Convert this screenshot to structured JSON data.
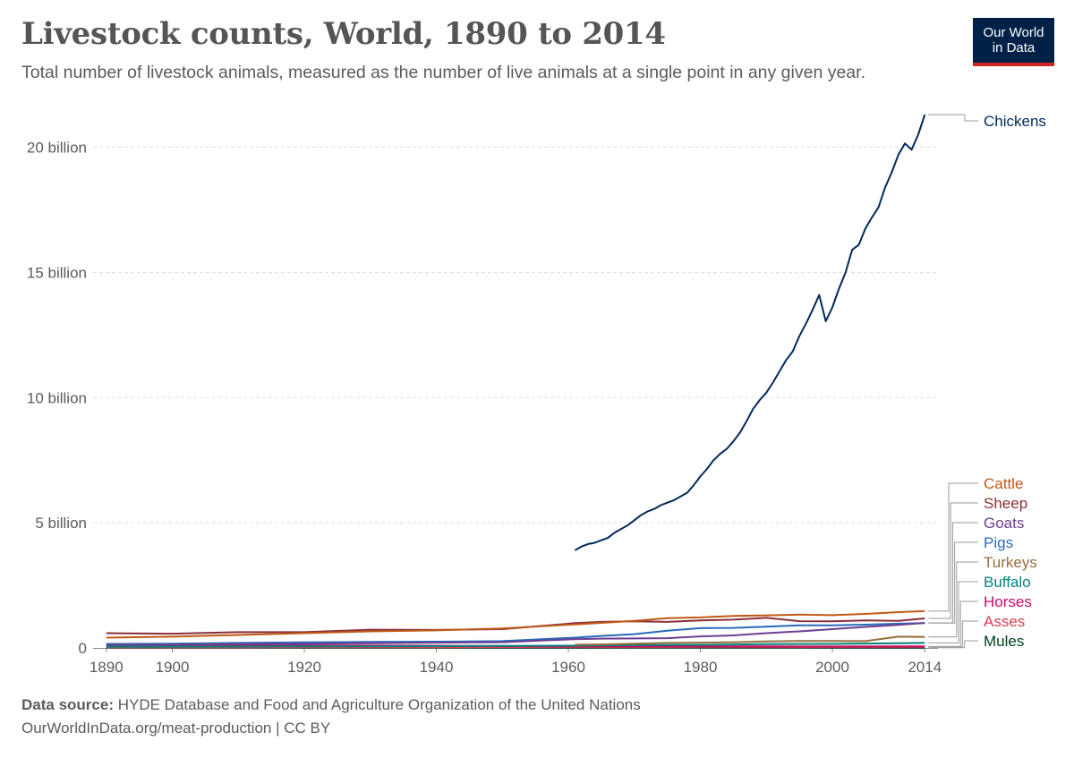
{
  "header": {
    "title": "Livestock counts, World, 1890 to 2014",
    "subtitle": "Total number of livestock animals, measured as the number of live animals at a single point in any given year.",
    "logo_line1": "Our World",
    "logo_line2": "in Data"
  },
  "footer": {
    "source_label": "Data source:",
    "source_text": "HYDE Database and Food and Agriculture Organization of the United Nations",
    "url": "OurWorldInData.org/meat-production",
    "separator": "|",
    "license": "CC BY"
  },
  "colors": {
    "grid": "#dddddd",
    "axis": "#888888",
    "label": "#5b5b5b",
    "connector": "#999999"
  },
  "chart_data": {
    "type": "line",
    "title": "Livestock counts, World, 1890 to 2014",
    "xlabel": "",
    "ylabel": "",
    "xlim": [
      1888,
      2016
    ],
    "ylim": [
      0,
      21500000000
    ],
    "grid": true,
    "legend": "right",
    "x_ticks": [
      {
        "value": 1890,
        "label": "1890"
      },
      {
        "value": 1900,
        "label": "1900"
      },
      {
        "value": 1920,
        "label": "1920"
      },
      {
        "value": 1940,
        "label": "1940"
      },
      {
        "value": 1960,
        "label": "1960"
      },
      {
        "value": 1980,
        "label": "1980"
      },
      {
        "value": 2000,
        "label": "2000"
      },
      {
        "value": 2014,
        "label": "2014"
      }
    ],
    "y_ticks": [
      {
        "value": 0,
        "label": "0"
      },
      {
        "value": 5000000000,
        "label": "5 billion"
      },
      {
        "value": 10000000000,
        "label": "10 billion"
      },
      {
        "value": 15000000000,
        "label": "15 billion"
      },
      {
        "value": 20000000000,
        "label": "20 billion"
      }
    ],
    "series": [
      {
        "name": "Chickens",
        "color": "#00295b",
        "x": [
          1961,
          1962,
          1963,
          1964,
          1965,
          1966,
          1967,
          1968,
          1969,
          1970,
          1971,
          1972,
          1973,
          1974,
          1975,
          1976,
          1977,
          1978,
          1979,
          1980,
          1981,
          1982,
          1983,
          1984,
          1985,
          1986,
          1987,
          1988,
          1989,
          1990,
          1991,
          1992,
          1993,
          1994,
          1995,
          1996,
          1997,
          1998,
          1999,
          2000,
          2001,
          2002,
          2003,
          2004,
          2005,
          2006,
          2007,
          2008,
          2009,
          2010,
          2011,
          2012,
          2013,
          2014
        ],
        "y": [
          3900000000.0,
          4050000000.0,
          4150000000.0,
          4200000000.0,
          4300000000.0,
          4400000000.0,
          4600000000.0,
          4750000000.0,
          4900000000.0,
          5100000000.0,
          5300000000.0,
          5450000000.0,
          5550000000.0,
          5700000000.0,
          5800000000.0,
          5900000000.0,
          6050000000.0,
          6200000000.0,
          6500000000.0,
          6850000000.0,
          7150000000.0,
          7500000000.0,
          7750000000.0,
          7950000000.0,
          8250000000.0,
          8600000000.0,
          9050000000.0,
          9550000000.0,
          9900000000.0,
          10200000000.0,
          10600000000.0,
          11050000000.0,
          11500000000.0,
          11850000000.0,
          12450000000.0,
          12950000000.0,
          13500000000.0,
          14100000000.0,
          13050000000.0,
          13600000000.0,
          14350000000.0,
          15000000000.0,
          15900000000.0,
          16100000000.0,
          16750000000.0,
          17200000000.0,
          17600000000.0,
          18400000000.0,
          19000000000.0,
          19700000000.0,
          20150000000.0,
          19900000000.0,
          20500000000.0,
          21300000000.0
        ]
      },
      {
        "name": "Cattle",
        "color": "#c05917",
        "x": [
          1890,
          1900,
          1910,
          1920,
          1930,
          1940,
          1950,
          1961,
          1965,
          1970,
          1975,
          1980,
          1985,
          1990,
          1995,
          2000,
          2005,
          2010,
          2014
        ],
        "y": [
          410000000.0,
          450000000.0,
          520000000.0,
          590000000.0,
          660000000.0,
          700000000.0,
          780000000.0,
          940000000.0,
          1000000000.0,
          1080000000.0,
          1190000000.0,
          1220000000.0,
          1280000000.0,
          1300000000.0,
          1330000000.0,
          1310000000.0,
          1360000000.0,
          1430000000.0,
          1470000000.0
        ]
      },
      {
        "name": "Sheep",
        "color": "#883039",
        "x": [
          1890,
          1900,
          1910,
          1920,
          1930,
          1940,
          1950,
          1961,
          1965,
          1970,
          1975,
          1980,
          1985,
          1990,
          1995,
          2000,
          2005,
          2010,
          2014
        ],
        "y": [
          590000000.0,
          570000000.0,
          630000000.0,
          630000000.0,
          730000000.0,
          720000000.0,
          750000000.0,
          990000000.0,
          1040000000.0,
          1060000000.0,
          1040000000.0,
          1100000000.0,
          1130000000.0,
          1200000000.0,
          1070000000.0,
          1060000000.0,
          1100000000.0,
          1080000000.0,
          1180000000.0
        ]
      },
      {
        "name": "Goats",
        "color": "#6d3e91",
        "x": [
          1890,
          1900,
          1910,
          1920,
          1930,
          1940,
          1950,
          1961,
          1965,
          1970,
          1975,
          1980,
          1985,
          1990,
          1995,
          2000,
          2005,
          2010,
          2014
        ],
        "y": [
          120000000.0,
          130000000.0,
          150000000.0,
          160000000.0,
          190000000.0,
          210000000.0,
          230000000.0,
          350000000.0,
          370000000.0,
          380000000.0,
          390000000.0,
          460000000.0,
          500000000.0,
          590000000.0,
          660000000.0,
          750000000.0,
          840000000.0,
          920000000.0,
          1000000000.0
        ]
      },
      {
        "name": "Pigs",
        "color": "#286bbb",
        "x": [
          1890,
          1900,
          1910,
          1920,
          1930,
          1940,
          1950,
          1961,
          1965,
          1970,
          1975,
          1980,
          1985,
          1990,
          1995,
          2000,
          2005,
          2010,
          2014
        ],
        "y": [
          160000000.0,
          170000000.0,
          200000000.0,
          220000000.0,
          240000000.0,
          250000000.0,
          270000000.0,
          410000000.0,
          480000000.0,
          550000000.0,
          690000000.0,
          790000000.0,
          800000000.0,
          850000000.0,
          900000000.0,
          900000000.0,
          930000000.0,
          970000000.0,
          990000000.0
        ]
      },
      {
        "name": "Turkeys",
        "color": "#996d39",
        "x": [
          1961,
          1965,
          1970,
          1975,
          1980,
          1985,
          1990,
          1995,
          2000,
          2005,
          2010,
          2014
        ],
        "y": [
          130000000.0,
          140000000.0,
          170000000.0,
          200000000.0,
          210000000.0,
          230000000.0,
          260000000.0,
          280000000.0,
          280000000.0,
          270000000.0,
          450000000.0,
          440000000.0
        ]
      },
      {
        "name": "Buffalo",
        "color": "#00847e",
        "x": [
          1890,
          1900,
          1920,
          1940,
          1961,
          1970,
          1980,
          1990,
          2000,
          2010,
          2014
        ],
        "y": [
          50000000.0,
          50000000.0,
          60000000.0,
          70000000.0,
          90000000.0,
          110000000.0,
          120000000.0,
          150000000.0,
          160000000.0,
          190000000.0,
          200000000.0
        ]
      },
      {
        "name": "Horses",
        "color": "#cf0a66",
        "x": [
          1890,
          1900,
          1920,
          1940,
          1961,
          1970,
          1980,
          1990,
          2000,
          2010,
          2014
        ],
        "y": [
          80000000.0,
          90000000.0,
          100000000.0,
          90000000.0,
          62000000.0,
          62000000.0,
          61000000.0,
          61000000.0,
          57000000.0,
          59000000.0,
          59000000.0
        ]
      },
      {
        "name": "Asses",
        "color": "#d73c50",
        "x": [
          1890,
          1900,
          1920,
          1940,
          1961,
          1970,
          1980,
          1990,
          2000,
          2010,
          2014
        ],
        "y": [
          20000000.0,
          21000000.0,
          25000000.0,
          30000000.0,
          39000000.0,
          41000000.0,
          42000000.0,
          43000000.0,
          41000000.0,
          42000000.0,
          44000000.0
        ]
      },
      {
        "name": "Mules",
        "color": "#00411a",
        "x": [
          1890,
          1900,
          1920,
          1940,
          1961,
          1970,
          1980,
          1990,
          2000,
          2010,
          2014
        ],
        "y": [
          10000000.0,
          11000000.0,
          12000000.0,
          12000000.0,
          12000000.0,
          13000000.0,
          13000000.0,
          14000000.0,
          12000000.0,
          11000000.0,
          10000000.0
        ]
      }
    ]
  }
}
